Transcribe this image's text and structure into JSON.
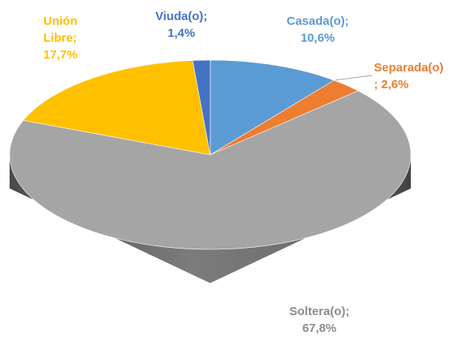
{
  "chart_data": {
    "type": "pie3d",
    "categories": [
      "Casada(o);",
      "Separada(o)",
      "Soltera(o);",
      "Unión Libre;",
      "Viuda(o);"
    ],
    "values": [
      10.6,
      2.6,
      67.8,
      17.7,
      1.4
    ],
    "value_labels": [
      "10,6%",
      "; 2,6%",
      "67,8%",
      "17,7%",
      "1,4%"
    ],
    "colors": [
      "#5b9bd5",
      "#ed7d31",
      "#a5a5a5",
      "#ffc000",
      "#4472c4"
    ],
    "label_colors": [
      "#5b9bd5",
      "#ed7d31",
      "#8c8c8c",
      "#ffc000",
      "#4472c4"
    ]
  }
}
